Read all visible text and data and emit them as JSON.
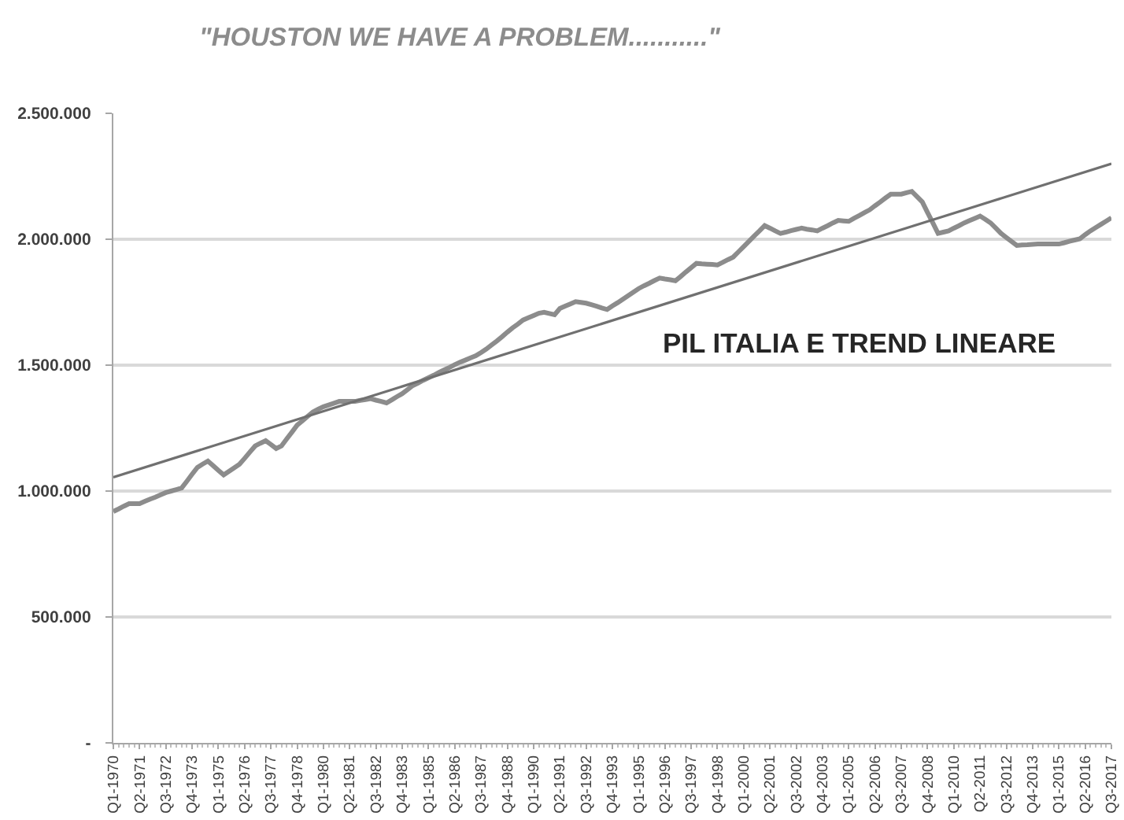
{
  "chart_data": {
    "type": "line",
    "title": "\"HOUSTON WE HAVE A PROBLEM...........\"",
    "annotations": [
      "PIL ITALIA E TREND LINEARE"
    ],
    "categories": [
      "Q1-1970",
      null,
      null,
      null,
      null,
      "Q2-1971",
      null,
      null,
      null,
      null,
      "Q3-1972",
      null,
      null,
      null,
      null,
      "Q4-1973",
      null,
      null,
      null,
      null,
      "Q1-1975",
      null,
      null,
      null,
      null,
      "Q2-1976",
      null,
      null,
      null,
      null,
      "Q3-1977",
      null,
      null,
      null,
      null,
      "Q4-1978",
      null,
      null,
      null,
      null,
      "Q1-1980",
      null,
      null,
      null,
      null,
      "Q2-1981",
      null,
      null,
      null,
      null,
      "Q3-1982",
      null,
      null,
      null,
      null,
      "Q4-1983",
      null,
      null,
      null,
      null,
      "Q1-1985",
      null,
      null,
      null,
      null,
      "Q2-1986",
      null,
      null,
      null,
      null,
      "Q3-1987",
      null,
      null,
      null,
      null,
      "Q4-1988",
      null,
      null,
      null,
      null,
      "Q1-1990",
      null,
      null,
      null,
      null,
      "Q2-1991",
      null,
      null,
      null,
      null,
      "Q3-1992",
      null,
      null,
      null,
      null,
      "Q4-1993",
      null,
      null,
      null,
      null,
      "Q1-1995",
      null,
      null,
      null,
      null,
      "Q2-1996",
      null,
      null,
      null,
      null,
      "Q3-1997",
      null,
      null,
      null,
      null,
      "Q4-1998",
      null,
      null,
      null,
      null,
      "Q1-2000",
      null,
      null,
      null,
      null,
      "Q2-2001",
      null,
      null,
      null,
      null,
      "Q3-2002",
      null,
      null,
      null,
      null,
      "Q4-2003",
      null,
      null,
      null,
      null,
      "Q1-2005",
      null,
      null,
      null,
      null,
      "Q2-2006",
      null,
      null,
      null,
      null,
      "Q3-2007",
      null,
      null,
      null,
      null,
      "Q4-2008",
      null,
      null,
      null,
      null,
      "Q1-2010",
      null,
      null,
      null,
      null,
      "Q2-2011",
      null,
      null,
      null,
      null,
      "Q3-2012",
      null,
      null,
      null,
      null,
      "Q4-2013",
      null,
      null,
      null,
      null,
      "Q1-2015",
      null,
      null,
      null,
      null,
      "Q2-2016",
      null,
      null,
      null,
      null,
      "Q3-2017"
    ],
    "series": [
      {
        "color": "#8c8c8c",
        "values": [
          919000,
          929000,
          940000,
          950000,
          950000,
          950000,
          959000,
          968000,
          976000,
          985000,
          994000,
          1000000,
          1006000,
          1012000,
          1039000,
          1067000,
          1094000,
          1107000,
          1119000,
          1101000,
          1082000,
          1064000,
          1078000,
          1092000,
          1106000,
          1130000,
          1155000,
          1179000,
          1190000,
          1200000,
          1185000,
          1169000,
          1179000,
          1207000,
          1234000,
          1262000,
          1279000,
          1297000,
          1314000,
          1325000,
          1335000,
          1342000,
          1349000,
          1356000,
          1356000,
          1356000,
          1356000,
          1360000,
          1363000,
          1367000,
          1361000,
          1356000,
          1350000,
          1362000,
          1375000,
          1387000,
          1403000,
          1419000,
          1429000,
          1440000,
          1450000,
          1460000,
          1471000,
          1481000,
          1491000,
          1502000,
          1512000,
          1520000,
          1529000,
          1537000,
          1550000,
          1564000,
          1580000,
          1596000,
          1613000,
          1631000,
          1648000,
          1663000,
          1679000,
          1688000,
          1697000,
          1706000,
          1710000,
          1705000,
          1700000,
          1725000,
          1734000,
          1743000,
          1752000,
          1749000,
          1746000,
          1740000,
          1734000,
          1727000,
          1721000,
          1735000,
          1748000,
          1762000,
          1776000,
          1790000,
          1804000,
          1815000,
          1825000,
          1836000,
          1846000,
          1842000,
          1839000,
          1835000,
          1852000,
          1870000,
          1887000,
          1904000,
          1902000,
          1901000,
          1900000,
          1898000,
          1908000,
          1919000,
          1929000,
          1950000,
          1971000,
          1992000,
          2013000,
          2033000,
          2054000,
          2044000,
          2033000,
          2023000,
          2028000,
          2034000,
          2039000,
          2044000,
          2040000,
          2037000,
          2033000,
          2044000,
          2054000,
          2065000,
          2075000,
          2073000,
          2071000,
          2083000,
          2094000,
          2106000,
          2117000,
          2133000,
          2148000,
          2164000,
          2179000,
          2179000,
          2179000,
          2185000,
          2190000,
          2169000,
          2148000,
          2106000,
          2065000,
          2023000,
          2028000,
          2033000,
          2044000,
          2054000,
          2065000,
          2074000,
          2083000,
          2092000,
          2079000,
          2065000,
          2044000,
          2023000,
          2007000,
          1991000,
          1975000,
          1977000,
          1978000,
          1980000,
          1981000,
          1981000,
          1981000,
          1981000,
          1981000,
          1986000,
          1992000,
          1997000,
          2002000,
          2018000,
          2033000,
          2046000,
          2059000,
          2072000,
          2085000
        ]
      },
      {
        "type": "line",
        "color": "#707070",
        "x": [
          "Q1-1970",
          "Q3-2017"
        ],
        "values": [
          1055000,
          2300000
        ]
      }
    ],
    "ylim": [
      0,
      2500000
    ],
    "yticks": [
      {
        "value": 0,
        "label": "-"
      },
      {
        "value": 500000,
        "label": "500.000"
      },
      {
        "value": 1000000,
        "label": "1.000.000"
      },
      {
        "value": 1500000,
        "label": "1.500.000"
      },
      {
        "value": 2000000,
        "label": "2.000.000"
      },
      {
        "value": 2500000,
        "label": "2.500.000"
      }
    ],
    "grid": "y"
  }
}
